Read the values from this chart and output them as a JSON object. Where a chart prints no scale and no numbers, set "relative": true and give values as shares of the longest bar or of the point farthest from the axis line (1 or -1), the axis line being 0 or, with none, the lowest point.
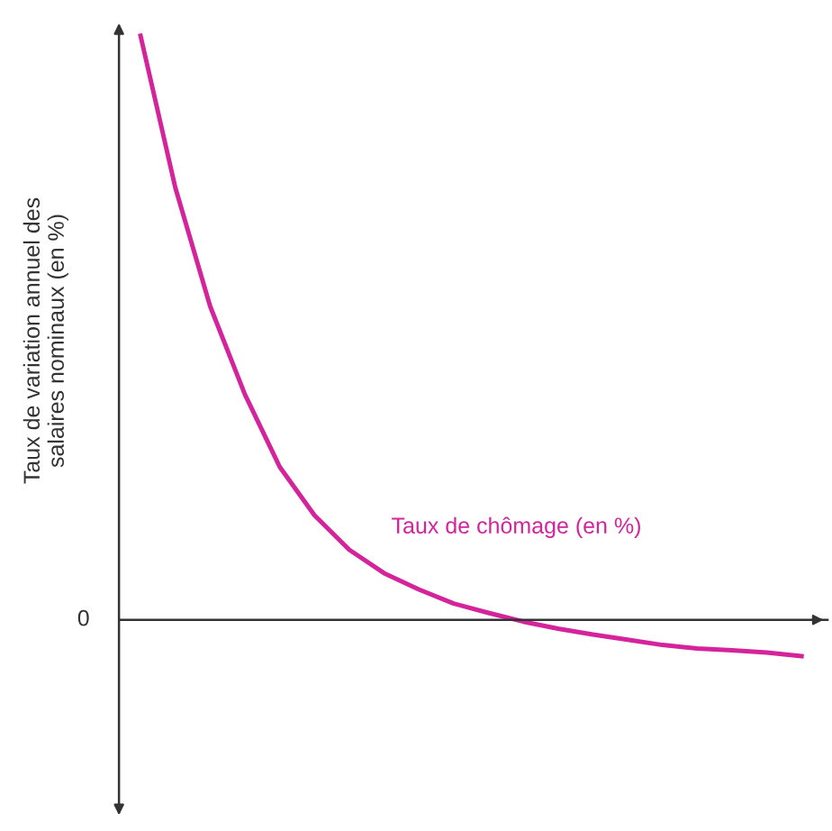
{
  "chart_data": {
    "type": "line",
    "relative": true,
    "xlabel": "Taux de chômage (en %)",
    "ylabel": "Taux de variation annuel des\nsalaires nominaux (en %)",
    "color": "#d4239b",
    "categories": [
      null,
      null,
      null,
      null,
      null,
      null,
      null,
      null,
      null,
      null,
      null,
      null,
      null,
      null,
      null,
      null,
      null,
      null,
      null,
      null
    ],
    "values": [
      1.0,
      0.74,
      0.537,
      0.386,
      0.262,
      0.179,
      0.12,
      0.08,
      0.052,
      0.028,
      0.012,
      -0.003,
      -0.015,
      -0.025,
      -0.034,
      -0.043,
      -0.049,
      -0.052,
      -0.056,
      -0.062
    ],
    "ref_lines": [
      {
        "axis": "y",
        "value": 0,
        "label": "0"
      }
    ]
  }
}
